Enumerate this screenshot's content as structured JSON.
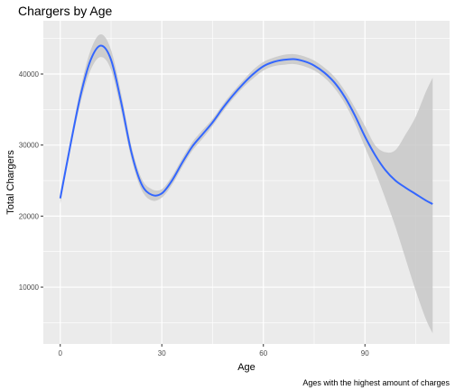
{
  "chart_data": {
    "type": "line",
    "title": "Chargers by Age",
    "xlabel": "Age",
    "ylabel": "Total Chargers",
    "caption": "Ages with the highest amount of charges",
    "xlim": [
      -5,
      115
    ],
    "ylim": [
      2000,
      47500
    ],
    "x_ticks": [
      0,
      30,
      60,
      90
    ],
    "y_ticks": [
      10000,
      20000,
      30000,
      40000
    ],
    "grid": true,
    "legend": "none",
    "colors": {
      "line": "#3366FF",
      "band": "#C8C8C8",
      "panel": "#EBEBEB",
      "grid": "#FFFFFF"
    },
    "series": [
      {
        "x": [
          0,
          3,
          6,
          9,
          12,
          15,
          18,
          21,
          24,
          27,
          30,
          33,
          36,
          39,
          42,
          45,
          48,
          51,
          54,
          57,
          60,
          63,
          66,
          69,
          72,
          75,
          78,
          81,
          84,
          87,
          90,
          93,
          96,
          99,
          102,
          105,
          108,
          110
        ],
        "y": [
          22500,
          30000,
          37000,
          42000,
          44000,
          42000,
          36000,
          29000,
          24500,
          23000,
          23200,
          25000,
          27500,
          29800,
          31500,
          33200,
          35200,
          37000,
          38600,
          40000,
          41100,
          41700,
          42000,
          42100,
          41800,
          41200,
          40200,
          38800,
          36800,
          34200,
          31200,
          28600,
          26500,
          25000,
          24000,
          23100,
          22200,
          21700
        ],
        "lower": [
          21700,
          29300,
          36000,
          40600,
          42400,
          40600,
          34800,
          28100,
          23700,
          22200,
          22600,
          24400,
          26900,
          29200,
          30900,
          32700,
          34700,
          36500,
          38100,
          39400,
          40500,
          41100,
          41300,
          41400,
          41100,
          40500,
          39500,
          38000,
          35900,
          33100,
          29700,
          26300,
          22500,
          18500,
          14000,
          9500,
          5500,
          3500
        ],
        "upper": [
          23300,
          30700,
          38000,
          43400,
          45600,
          43400,
          37200,
          29900,
          25300,
          23800,
          23800,
          25600,
          28100,
          30400,
          32100,
          33700,
          35700,
          37500,
          39100,
          40600,
          41700,
          42300,
          42700,
          42800,
          42500,
          41900,
          40900,
          39600,
          37700,
          35300,
          32700,
          30000,
          29000,
          29300,
          31500,
          34000,
          37500,
          39500
        ]
      }
    ]
  }
}
